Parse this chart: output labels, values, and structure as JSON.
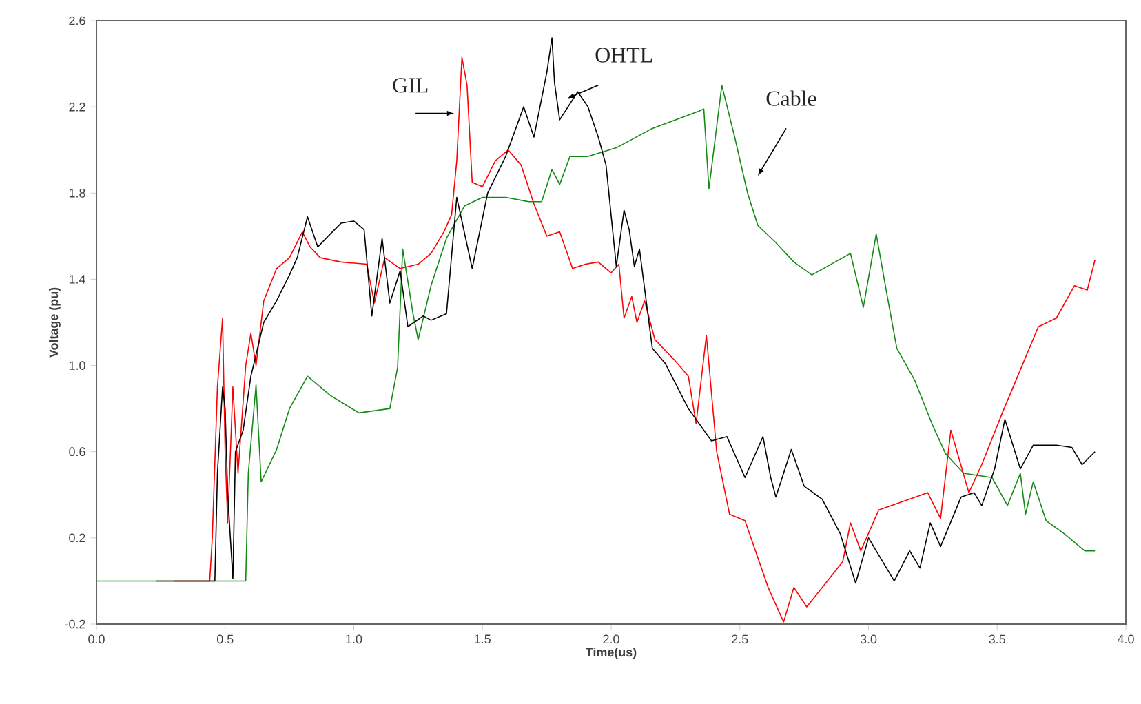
{
  "chart_data": {
    "type": "line",
    "xlabel": "Time(us)",
    "ylabel": "Voltage (pu)",
    "xlim": [
      0,
      4.0
    ],
    "ylim": [
      -0.2,
      2.6
    ],
    "xticks": [
      {
        "value": 0,
        "label": "0.0"
      },
      0.5,
      {
        "value": 1,
        "label": "1.0"
      },
      1.5,
      {
        "value": 2,
        "label": "2.0"
      },
      2.5,
      {
        "value": 3,
        "label": "3.0"
      },
      3.5,
      {
        "value": 4,
        "label": "4.0"
      }
    ],
    "yticks": [
      -0.2,
      0.2,
      0.6,
      {
        "value": 1,
        "label": "1.0"
      },
      1.4,
      1.8,
      2.2,
      2.6
    ],
    "marker": "none",
    "line_style": "solid",
    "series": [
      {
        "name": "Cable",
        "color": "#138a13",
        "x": [
          0.0,
          0.58,
          0.59,
          0.62,
          0.64,
          0.7,
          0.75,
          0.82,
          0.91,
          1.02,
          1.14,
          1.17,
          1.19,
          1.23,
          1.25,
          1.3,
          1.36,
          1.43,
          1.5,
          1.59,
          1.68,
          1.73,
          1.77,
          1.8,
          1.84,
          1.91,
          2.02,
          2.16,
          2.34,
          2.36,
          2.38,
          2.43,
          2.48,
          2.53,
          2.57,
          2.64,
          2.71,
          2.78,
          2.87,
          2.93,
          2.98,
          3.03,
          3.07,
          3.11,
          3.18,
          3.25,
          3.3,
          3.37,
          3.48,
          3.54,
          3.59,
          3.61,
          3.64,
          3.69,
          3.76,
          3.84,
          3.88
        ],
        "values": [
          0.0,
          0.0,
          0.5,
          0.91,
          0.46,
          0.61,
          0.8,
          0.95,
          0.86,
          0.78,
          0.8,
          0.99,
          1.54,
          1.24,
          1.12,
          1.37,
          1.59,
          1.74,
          1.78,
          1.78,
          1.76,
          1.76,
          1.91,
          1.84,
          1.97,
          1.97,
          2.01,
          2.1,
          2.18,
          2.19,
          1.82,
          2.3,
          2.06,
          1.8,
          1.65,
          1.57,
          1.48,
          1.42,
          1.48,
          1.52,
          1.27,
          1.61,
          1.34,
          1.08,
          0.93,
          0.72,
          0.59,
          0.5,
          0.48,
          0.35,
          0.5,
          0.31,
          0.46,
          0.28,
          0.22,
          0.14,
          0.14
        ]
      },
      {
        "name": "GIL",
        "color": "#ff0000",
        "x": [
          0.3,
          0.44,
          0.45,
          0.47,
          0.49,
          0.5,
          0.51,
          0.53,
          0.55,
          0.58,
          0.6,
          0.62,
          0.65,
          0.7,
          0.75,
          0.8,
          0.83,
          0.87,
          0.95,
          1.05,
          1.08,
          1.12,
          1.18,
          1.25,
          1.3,
          1.35,
          1.38,
          1.4,
          1.42,
          1.44,
          1.46,
          1.5,
          1.55,
          1.6,
          1.65,
          1.7,
          1.75,
          1.8,
          1.85,
          1.9,
          1.95,
          2.0,
          2.03,
          2.05,
          2.08,
          2.1,
          2.13,
          2.17,
          2.25,
          2.3,
          2.33,
          2.37,
          2.41,
          2.46,
          2.52,
          2.61,
          2.67,
          2.71,
          2.76,
          2.84,
          2.9,
          2.93,
          2.97,
          3.04,
          3.16,
          3.23,
          3.28,
          3.32,
          3.39,
          3.44,
          3.52,
          3.59,
          3.66,
          3.73,
          3.8,
          3.85,
          3.88
        ],
        "values": [
          0.0,
          0.0,
          0.2,
          0.9,
          1.22,
          0.6,
          0.27,
          0.9,
          0.5,
          1.0,
          1.15,
          1.0,
          1.3,
          1.45,
          1.5,
          1.62,
          1.55,
          1.5,
          1.48,
          1.47,
          1.29,
          1.5,
          1.45,
          1.47,
          1.52,
          1.62,
          1.7,
          1.95,
          2.43,
          2.3,
          1.85,
          1.83,
          1.95,
          2.0,
          1.93,
          1.75,
          1.6,
          1.62,
          1.45,
          1.47,
          1.48,
          1.43,
          1.47,
          1.22,
          1.32,
          1.2,
          1.3,
          1.12,
          1.02,
          0.95,
          0.73,
          1.14,
          0.6,
          0.31,
          0.28,
          -0.03,
          -0.19,
          -0.03,
          -0.12,
          0.0,
          0.09,
          0.27,
          0.14,
          0.33,
          0.38,
          0.41,
          0.29,
          0.7,
          0.41,
          0.54,
          0.78,
          0.98,
          1.18,
          1.22,
          1.37,
          1.35,
          1.49
        ]
      },
      {
        "name": "OHTL",
        "color": "#000000",
        "x": [
          0.23,
          0.46,
          0.47,
          0.49,
          0.5,
          0.51,
          0.53,
          0.54,
          0.57,
          0.6,
          0.62,
          0.65,
          0.7,
          0.75,
          0.78,
          0.82,
          0.86,
          0.9,
          0.95,
          1.0,
          1.04,
          1.07,
          1.11,
          1.14,
          1.18,
          1.21,
          1.27,
          1.3,
          1.36,
          1.4,
          1.46,
          1.52,
          1.59,
          1.66,
          1.7,
          1.75,
          1.77,
          1.78,
          1.8,
          1.87,
          1.91,
          1.95,
          1.98,
          2.02,
          2.05,
          2.07,
          2.09,
          2.11,
          2.16,
          2.21,
          2.3,
          2.39,
          2.45,
          2.52,
          2.59,
          2.62,
          2.64,
          2.7,
          2.75,
          2.82,
          2.89,
          2.95,
          3.0,
          3.1,
          3.16,
          3.2,
          3.24,
          3.28,
          3.36,
          3.41,
          3.44,
          3.49,
          3.53,
          3.59,
          3.64,
          3.73,
          3.79,
          3.83,
          3.88
        ],
        "values": [
          0.0,
          0.0,
          0.5,
          0.9,
          0.8,
          0.4,
          0.01,
          0.6,
          0.7,
          0.95,
          1.05,
          1.2,
          1.3,
          1.42,
          1.5,
          1.69,
          1.55,
          1.6,
          1.66,
          1.67,
          1.63,
          1.23,
          1.59,
          1.29,
          1.44,
          1.18,
          1.23,
          1.21,
          1.24,
          1.78,
          1.45,
          1.8,
          1.97,
          2.2,
          2.06,
          2.36,
          2.52,
          2.31,
          2.14,
          2.27,
          2.2,
          2.06,
          1.93,
          1.46,
          1.72,
          1.63,
          1.46,
          1.54,
          1.08,
          1.01,
          0.8,
          0.65,
          0.67,
          0.48,
          0.67,
          0.48,
          0.39,
          0.61,
          0.44,
          0.38,
          0.22,
          -0.01,
          0.2,
          0.0,
          0.14,
          0.06,
          0.27,
          0.16,
          0.39,
          0.41,
          0.35,
          0.52,
          0.75,
          0.52,
          0.63,
          0.63,
          0.62,
          0.54,
          0.6
        ]
      }
    ]
  }
}
